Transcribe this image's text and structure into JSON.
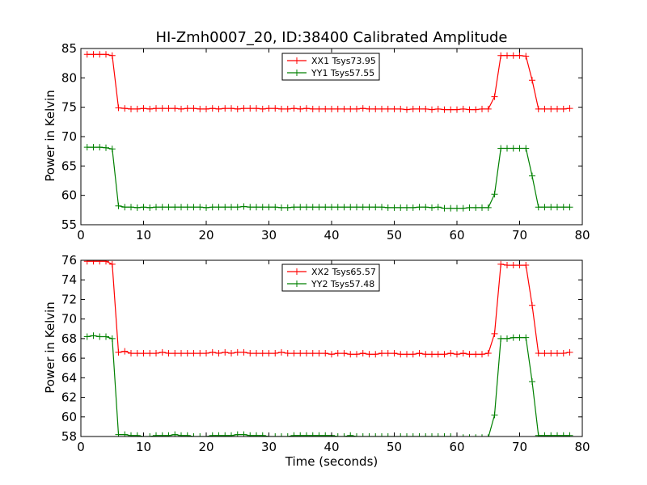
{
  "chart_data": [
    {
      "type": "line",
      "title": "HI-Zmh0007_20, ID:38400 Calibrated Amplitude",
      "xlabel": "",
      "ylabel": "Power in Kelvin",
      "xlim": [
        0,
        80
      ],
      "ylim": [
        55,
        85
      ],
      "xticks": [
        "0",
        "10",
        "20",
        "30",
        "40",
        "50",
        "60",
        "70",
        "80"
      ],
      "yticks": [
        "55",
        "60",
        "65",
        "70",
        "75",
        "80",
        "85"
      ],
      "grid": false,
      "legend_position": "top-center",
      "x": [
        1,
        2,
        3,
        4,
        5,
        6,
        7,
        8,
        9,
        10,
        11,
        12,
        13,
        14,
        15,
        16,
        17,
        18,
        19,
        20,
        21,
        22,
        23,
        24,
        25,
        26,
        27,
        28,
        29,
        30,
        31,
        32,
        33,
        34,
        35,
        36,
        37,
        38,
        39,
        40,
        41,
        42,
        43,
        44,
        45,
        46,
        47,
        48,
        49,
        50,
        51,
        52,
        53,
        54,
        55,
        56,
        57,
        58,
        59,
        60,
        61,
        62,
        63,
        64,
        65,
        66,
        67,
        68,
        69,
        70,
        71,
        72,
        73,
        74,
        75,
        76,
        77,
        78
      ],
      "series": [
        {
          "name": "XX1 Tsys73.95",
          "color": "#ff0000",
          "values": [
            84.0,
            84.0,
            84.0,
            84.0,
            83.8,
            74.9,
            74.8,
            74.7,
            74.7,
            74.8,
            74.7,
            74.8,
            74.8,
            74.8,
            74.8,
            74.7,
            74.8,
            74.8,
            74.7,
            74.7,
            74.8,
            74.7,
            74.8,
            74.8,
            74.7,
            74.8,
            74.8,
            74.8,
            74.7,
            74.8,
            74.8,
            74.7,
            74.7,
            74.8,
            74.7,
            74.8,
            74.7,
            74.7,
            74.7,
            74.7,
            74.7,
            74.7,
            74.7,
            74.7,
            74.8,
            74.7,
            74.7,
            74.7,
            74.7,
            74.7,
            74.7,
            74.6,
            74.7,
            74.7,
            74.7,
            74.6,
            74.7,
            74.6,
            74.6,
            74.6,
            74.7,
            74.6,
            74.6,
            74.7,
            74.7,
            76.8,
            83.8,
            83.8,
            83.8,
            83.8,
            83.7,
            79.6,
            74.7,
            74.7,
            74.7,
            74.7,
            74.7,
            74.8
          ]
        },
        {
          "name": "YY1 Tsys57.55",
          "color": "#008000",
          "values": [
            68.2,
            68.2,
            68.2,
            68.1,
            67.9,
            58.2,
            58.0,
            58.0,
            57.9,
            58.0,
            57.9,
            58.0,
            58.0,
            58.0,
            58.0,
            58.0,
            58.0,
            58.0,
            58.0,
            57.9,
            58.0,
            58.0,
            58.0,
            58.0,
            58.0,
            58.1,
            58.0,
            58.0,
            58.0,
            58.0,
            58.0,
            57.9,
            57.9,
            58.0,
            58.0,
            58.0,
            58.0,
            58.0,
            58.0,
            58.0,
            58.0,
            58.0,
            58.0,
            58.0,
            58.0,
            58.0,
            58.0,
            58.0,
            57.9,
            57.9,
            57.9,
            57.9,
            57.9,
            58.0,
            58.0,
            57.9,
            58.0,
            57.8,
            57.8,
            57.8,
            57.8,
            57.9,
            57.9,
            57.9,
            57.9,
            60.2,
            68.0,
            68.0,
            68.0,
            68.0,
            68.0,
            63.3,
            58.0,
            58.0,
            58.0,
            58.0,
            58.0,
            58.0
          ]
        }
      ]
    },
    {
      "type": "line",
      "title": "",
      "xlabel": "Time (seconds)",
      "ylabel": "Power in Kelvin",
      "xlim": [
        0,
        80
      ],
      "ylim": [
        58,
        76
      ],
      "xticks": [
        "0",
        "10",
        "20",
        "30",
        "40",
        "50",
        "60",
        "70",
        "80"
      ],
      "yticks": [
        "58",
        "60",
        "62",
        "64",
        "66",
        "68",
        "70",
        "72",
        "74",
        "76"
      ],
      "grid": false,
      "legend_position": "top-center",
      "x": [
        1,
        2,
        3,
        4,
        5,
        6,
        7,
        8,
        9,
        10,
        11,
        12,
        13,
        14,
        15,
        16,
        17,
        18,
        19,
        20,
        21,
        22,
        23,
        24,
        25,
        26,
        27,
        28,
        29,
        30,
        31,
        32,
        33,
        34,
        35,
        36,
        37,
        38,
        39,
        40,
        41,
        42,
        43,
        44,
        45,
        46,
        47,
        48,
        49,
        50,
        51,
        52,
        53,
        54,
        55,
        56,
        57,
        58,
        59,
        60,
        61,
        62,
        63,
        64,
        65,
        66,
        67,
        68,
        69,
        70,
        71,
        72,
        73,
        74,
        75,
        76,
        77,
        78
      ],
      "series": [
        {
          "name": "XX2 Tsys65.57",
          "color": "#ff0000",
          "values": [
            75.9,
            75.9,
            75.9,
            75.9,
            75.6,
            66.6,
            66.7,
            66.5,
            66.5,
            66.5,
            66.5,
            66.5,
            66.6,
            66.5,
            66.5,
            66.5,
            66.5,
            66.5,
            66.5,
            66.5,
            66.6,
            66.5,
            66.6,
            66.5,
            66.6,
            66.6,
            66.5,
            66.5,
            66.5,
            66.5,
            66.5,
            66.6,
            66.5,
            66.5,
            66.5,
            66.5,
            66.5,
            66.5,
            66.5,
            66.4,
            66.5,
            66.5,
            66.4,
            66.4,
            66.5,
            66.4,
            66.4,
            66.5,
            66.5,
            66.5,
            66.4,
            66.4,
            66.4,
            66.5,
            66.4,
            66.4,
            66.4,
            66.4,
            66.5,
            66.4,
            66.5,
            66.4,
            66.4,
            66.4,
            66.5,
            68.5,
            75.6,
            75.5,
            75.5,
            75.5,
            75.5,
            71.4,
            66.5,
            66.5,
            66.5,
            66.5,
            66.5,
            66.6
          ]
        },
        {
          "name": "YY2 Tsys57.48",
          "color": "#008000",
          "values": [
            68.2,
            68.3,
            68.2,
            68.2,
            68.0,
            58.2,
            58.2,
            58.1,
            58.1,
            58.0,
            58.0,
            58.1,
            58.1,
            58.1,
            58.2,
            58.1,
            58.1,
            58.0,
            58.0,
            58.0,
            58.1,
            58.1,
            58.1,
            58.1,
            58.2,
            58.2,
            58.1,
            58.1,
            58.1,
            58.0,
            58.0,
            58.0,
            58.0,
            58.1,
            58.1,
            58.1,
            58.1,
            58.1,
            58.1,
            58.1,
            58.0,
            58.0,
            58.1,
            58.0,
            58.0,
            58.0,
            58.0,
            58.0,
            58.0,
            58.0,
            58.0,
            58.0,
            58.0,
            58.0,
            58.0,
            58.0,
            58.0,
            58.0,
            58.0,
            57.9,
            57.9,
            57.9,
            57.9,
            57.9,
            57.9,
            60.2,
            68.0,
            68.0,
            68.1,
            68.1,
            68.1,
            63.6,
            58.1,
            58.1,
            58.1,
            58.1,
            58.1,
            58.1
          ]
        }
      ]
    }
  ]
}
